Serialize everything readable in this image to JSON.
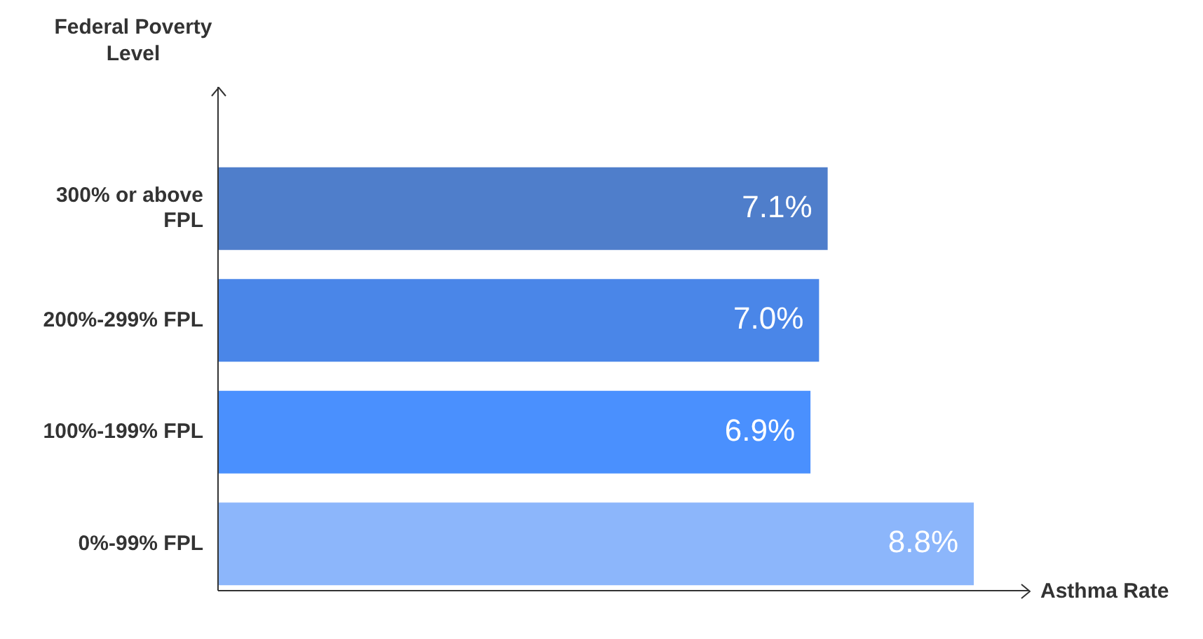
{
  "chart_data": {
    "type": "bar",
    "orientation": "horizontal",
    "ylabel": "Federal Poverty Level",
    "xlabel": "Asthma Rate",
    "categories": [
      "300% or above FPL",
      "200%-299% FPL",
      "100%-199% FPL",
      "0%-99% FPL"
    ],
    "values": [
      7.1,
      7.0,
      6.9,
      8.8
    ],
    "colors": [
      "#4f7ecb",
      "#4a86e8",
      "#4a90fe",
      "#8cb6fb"
    ],
    "value_labels": [
      "7.1%",
      "7.0%",
      "6.9%",
      "8.8%"
    ],
    "legend": false
  }
}
